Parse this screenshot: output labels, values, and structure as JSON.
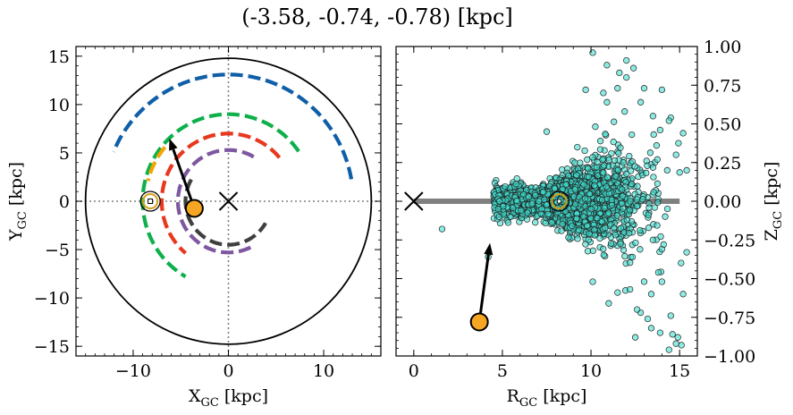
{
  "figure": {
    "suptitle": "(-3.58, -0.74, -0.78) [kpc]"
  },
  "chart_data": [
    {
      "type": "line",
      "panel": "left",
      "xlabel": "X",
      "xlabel_sub": "GC",
      "xlabel_unit": " [kpc]",
      "ylabel": "Y",
      "ylabel_sub": "GC",
      "ylabel_unit": " [kpc]",
      "xlim": [
        -16,
        16
      ],
      "ylim": [
        -16,
        16
      ],
      "xticks": [
        -10,
        0,
        10
      ],
      "xtick_labels": [
        "−10",
        "0",
        "10"
      ],
      "yticks": [
        -15,
        -10,
        -5,
        0,
        5,
        10,
        15
      ],
      "ytick_labels": [
        "−15",
        "−10",
        "−5",
        "0",
        "5",
        "10",
        "15"
      ],
      "reference_lines": {
        "x": 0,
        "y": 0,
        "style": "dotted",
        "color": "#808080"
      },
      "boundary_circle": {
        "radius": 15,
        "color": "#000000"
      },
      "galactic_center": {
        "x": 0,
        "y": 0,
        "marker": "x",
        "color": "#000000"
      },
      "sun": {
        "x": -8.2,
        "y": 0.0,
        "marker": "circled-dot",
        "color": "#d4a017"
      },
      "source": {
        "x": -3.58,
        "y": -0.74,
        "color": "#f5a623"
      },
      "velocity_arrow": {
        "from": [
          -3.58,
          -0.74
        ],
        "to": [
          -6.2,
          6.5
        ],
        "color": "#000000"
      },
      "spiral_arms": [
        {
          "color": "#0f5fa8",
          "radius": 13.1,
          "start_deg": 10,
          "end_deg": 157
        },
        {
          "color": "#0db04b",
          "radius": 9.0,
          "start_deg": 35,
          "end_deg": 240
        },
        {
          "color": "#e8381e",
          "radius": 7.0,
          "start_deg": 40,
          "end_deg": 230
        },
        {
          "color": "#7e57a0",
          "radius": 5.3,
          "start_deg": 60,
          "end_deg": 300
        },
        {
          "color": "#3f3f3f",
          "radius": 4.5,
          "start_deg": 150,
          "end_deg": 330
        },
        {
          "color": "#f5a300",
          "radius": 8.7,
          "start_deg": 140,
          "end_deg": 166
        }
      ]
    },
    {
      "type": "scatter",
      "panel": "right",
      "xlabel": "R",
      "xlabel_sub": "GC",
      "xlabel_unit": " [kpc]",
      "ylabel": "Z",
      "ylabel_sub": "GC",
      "ylabel_unit": " [kpc]",
      "xlim": [
        -1,
        16
      ],
      "ylim": [
        -1.0,
        1.0
      ],
      "xticks": [
        0,
        5,
        10,
        15
      ],
      "xtick_labels": [
        "0",
        "5",
        "10",
        "15"
      ],
      "yticks": [
        -1.0,
        -0.75,
        -0.5,
        -0.25,
        0.0,
        0.25,
        0.5,
        0.75,
        1.0
      ],
      "ytick_labels": [
        "−1.00",
        "−0.75",
        "−0.50",
        "−0.25",
        "0.00",
        "0.25",
        "0.50",
        "0.75",
        "1.00"
      ],
      "galactic_plane": {
        "x": [
          0,
          15
        ],
        "y": 0,
        "color": "#808080"
      },
      "galactic_center": {
        "x": 0,
        "y": 0,
        "marker": "x",
        "color": "#000000"
      },
      "sun": {
        "x": 8.2,
        "y": 0.0,
        "marker": "circled-dot",
        "color": "#d4a017"
      },
      "source": {
        "x": 3.7,
        "y": -0.78,
        "color": "#f5a623"
      },
      "velocity_arrow": {
        "from": [
          3.7,
          -0.78
        ],
        "to": [
          4.3,
          -0.27
        ],
        "color": "#000000"
      },
      "stars": {
        "color": "#40e0d0",
        "edge_color": "#222222",
        "approx_count": 2500,
        "dense_region_center": [
          8.5,
          0.0
        ],
        "outliers": [
          [
            10.1,
            0.96
          ],
          [
            12.0,
            0.91
          ],
          [
            10.9,
            0.88
          ],
          [
            12.4,
            0.86
          ],
          [
            11.6,
            0.83
          ],
          [
            14.0,
            0.72
          ],
          [
            12.0,
            0.8
          ],
          [
            9.7,
            0.72
          ],
          [
            10.7,
            0.7
          ],
          [
            13.0,
            0.73
          ],
          [
            12.8,
            0.64
          ],
          [
            11.5,
            0.73
          ],
          [
            13.5,
            0.55
          ],
          [
            14.5,
            0.54
          ],
          [
            7.5,
            0.45
          ],
          [
            14.4,
            0.52
          ],
          [
            13.9,
            0.46
          ],
          [
            15.2,
            0.44
          ],
          [
            13.7,
            0.36
          ],
          [
            14.8,
            0.3
          ],
          [
            14.3,
            0.2
          ],
          [
            15.4,
            0.2
          ],
          [
            11.9,
            0.58
          ],
          [
            10.9,
            0.64
          ],
          [
            12.3,
            0.43
          ],
          [
            1.6,
            -0.18
          ],
          [
            4.2,
            -0.36
          ],
          [
            13.4,
            -0.82
          ],
          [
            12.8,
            -0.72
          ],
          [
            14.5,
            -0.74
          ],
          [
            13.4,
            -0.6
          ],
          [
            12.6,
            -0.7
          ],
          [
            14.8,
            -0.92
          ],
          [
            15.1,
            -0.93
          ],
          [
            14.9,
            -0.88
          ],
          [
            12.5,
            -0.88
          ],
          [
            14.4,
            -0.96
          ],
          [
            11.0,
            -0.66
          ],
          [
            14.6,
            -0.86
          ],
          [
            13.2,
            -0.76
          ],
          [
            13.9,
            -0.85
          ],
          [
            14.0,
            -0.52
          ],
          [
            13.8,
            -0.46
          ],
          [
            15.4,
            -0.33
          ],
          [
            14.1,
            -0.28
          ],
          [
            12.2,
            -0.57
          ],
          [
            11.5,
            -0.59
          ],
          [
            15.2,
            -0.6
          ],
          [
            13.5,
            -0.25
          ],
          [
            10.1,
            -0.52
          ]
        ]
      }
    }
  ]
}
